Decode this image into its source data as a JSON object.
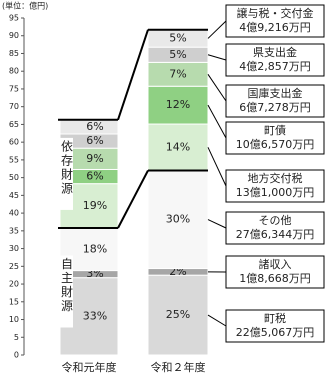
{
  "chart_data": {
    "type": "stacked_bar",
    "unit_label": "(単位：億円)",
    "categories": [
      "令和元年度",
      "令和２年度"
    ],
    "group_labels": [
      "自主財源",
      "依存財源"
    ],
    "ylim": [
      0,
      95
    ],
    "yticks": [
      0,
      5,
      10,
      15,
      20,
      25,
      30,
      35,
      40,
      45,
      50,
      55,
      60,
      65,
      70,
      75,
      80,
      85,
      90,
      95
    ],
    "series": [
      {
        "name": "町税",
        "color": "#d9d9d9",
        "values": [
          21.8,
          22.5067
        ],
        "percent_labels": [
          "33%",
          "25%"
        ],
        "amount_label": "22億5,067万円"
      },
      {
        "name": "諸収入",
        "color": "#a6a6a6",
        "values": [
          2,
          1.8668
        ],
        "percent_labels": [
          "3%",
          "2%"
        ],
        "amount_label": "1億8,668万円"
      },
      {
        "name": "その他",
        "color": "#f7f7f7",
        "values": [
          12,
          27.6344
        ],
        "percent_labels": [
          "18%",
          "30%"
        ],
        "amount_label": "27億6,344万円"
      },
      {
        "name": "地方交付税",
        "color": "#d8eed2",
        "values": [
          12.5,
          13.1
        ],
        "percent_labels": [
          "19%",
          "14%"
        ],
        "amount_label": "13億1,000万円"
      },
      {
        "name": "町債",
        "color": "#8fd083",
        "values": [
          4,
          10.657
        ],
        "percent_labels": [
          "6%",
          "12%"
        ],
        "amount_label": "10億6,570万円"
      },
      {
        "name": "国庫支出金",
        "color": "#b7dbae",
        "values": [
          6,
          6.7278
        ],
        "percent_labels": [
          "9%",
          "7%"
        ],
        "amount_label": "6億7,278万円"
      },
      {
        "name": "県支出金",
        "color": "#cfcfcf",
        "values": [
          4,
          4.2857
        ],
        "percent_labels": [
          "6%",
          "5%"
        ],
        "amount_label": "4億2,857万円"
      },
      {
        "name": "譲与税・交付金",
        "color": "#e9e9e9",
        "values": [
          4,
          4.9216
        ],
        "percent_labels": [
          "6%",
          "5%"
        ],
        "amount_label": "4億9,216万円"
      }
    ]
  }
}
